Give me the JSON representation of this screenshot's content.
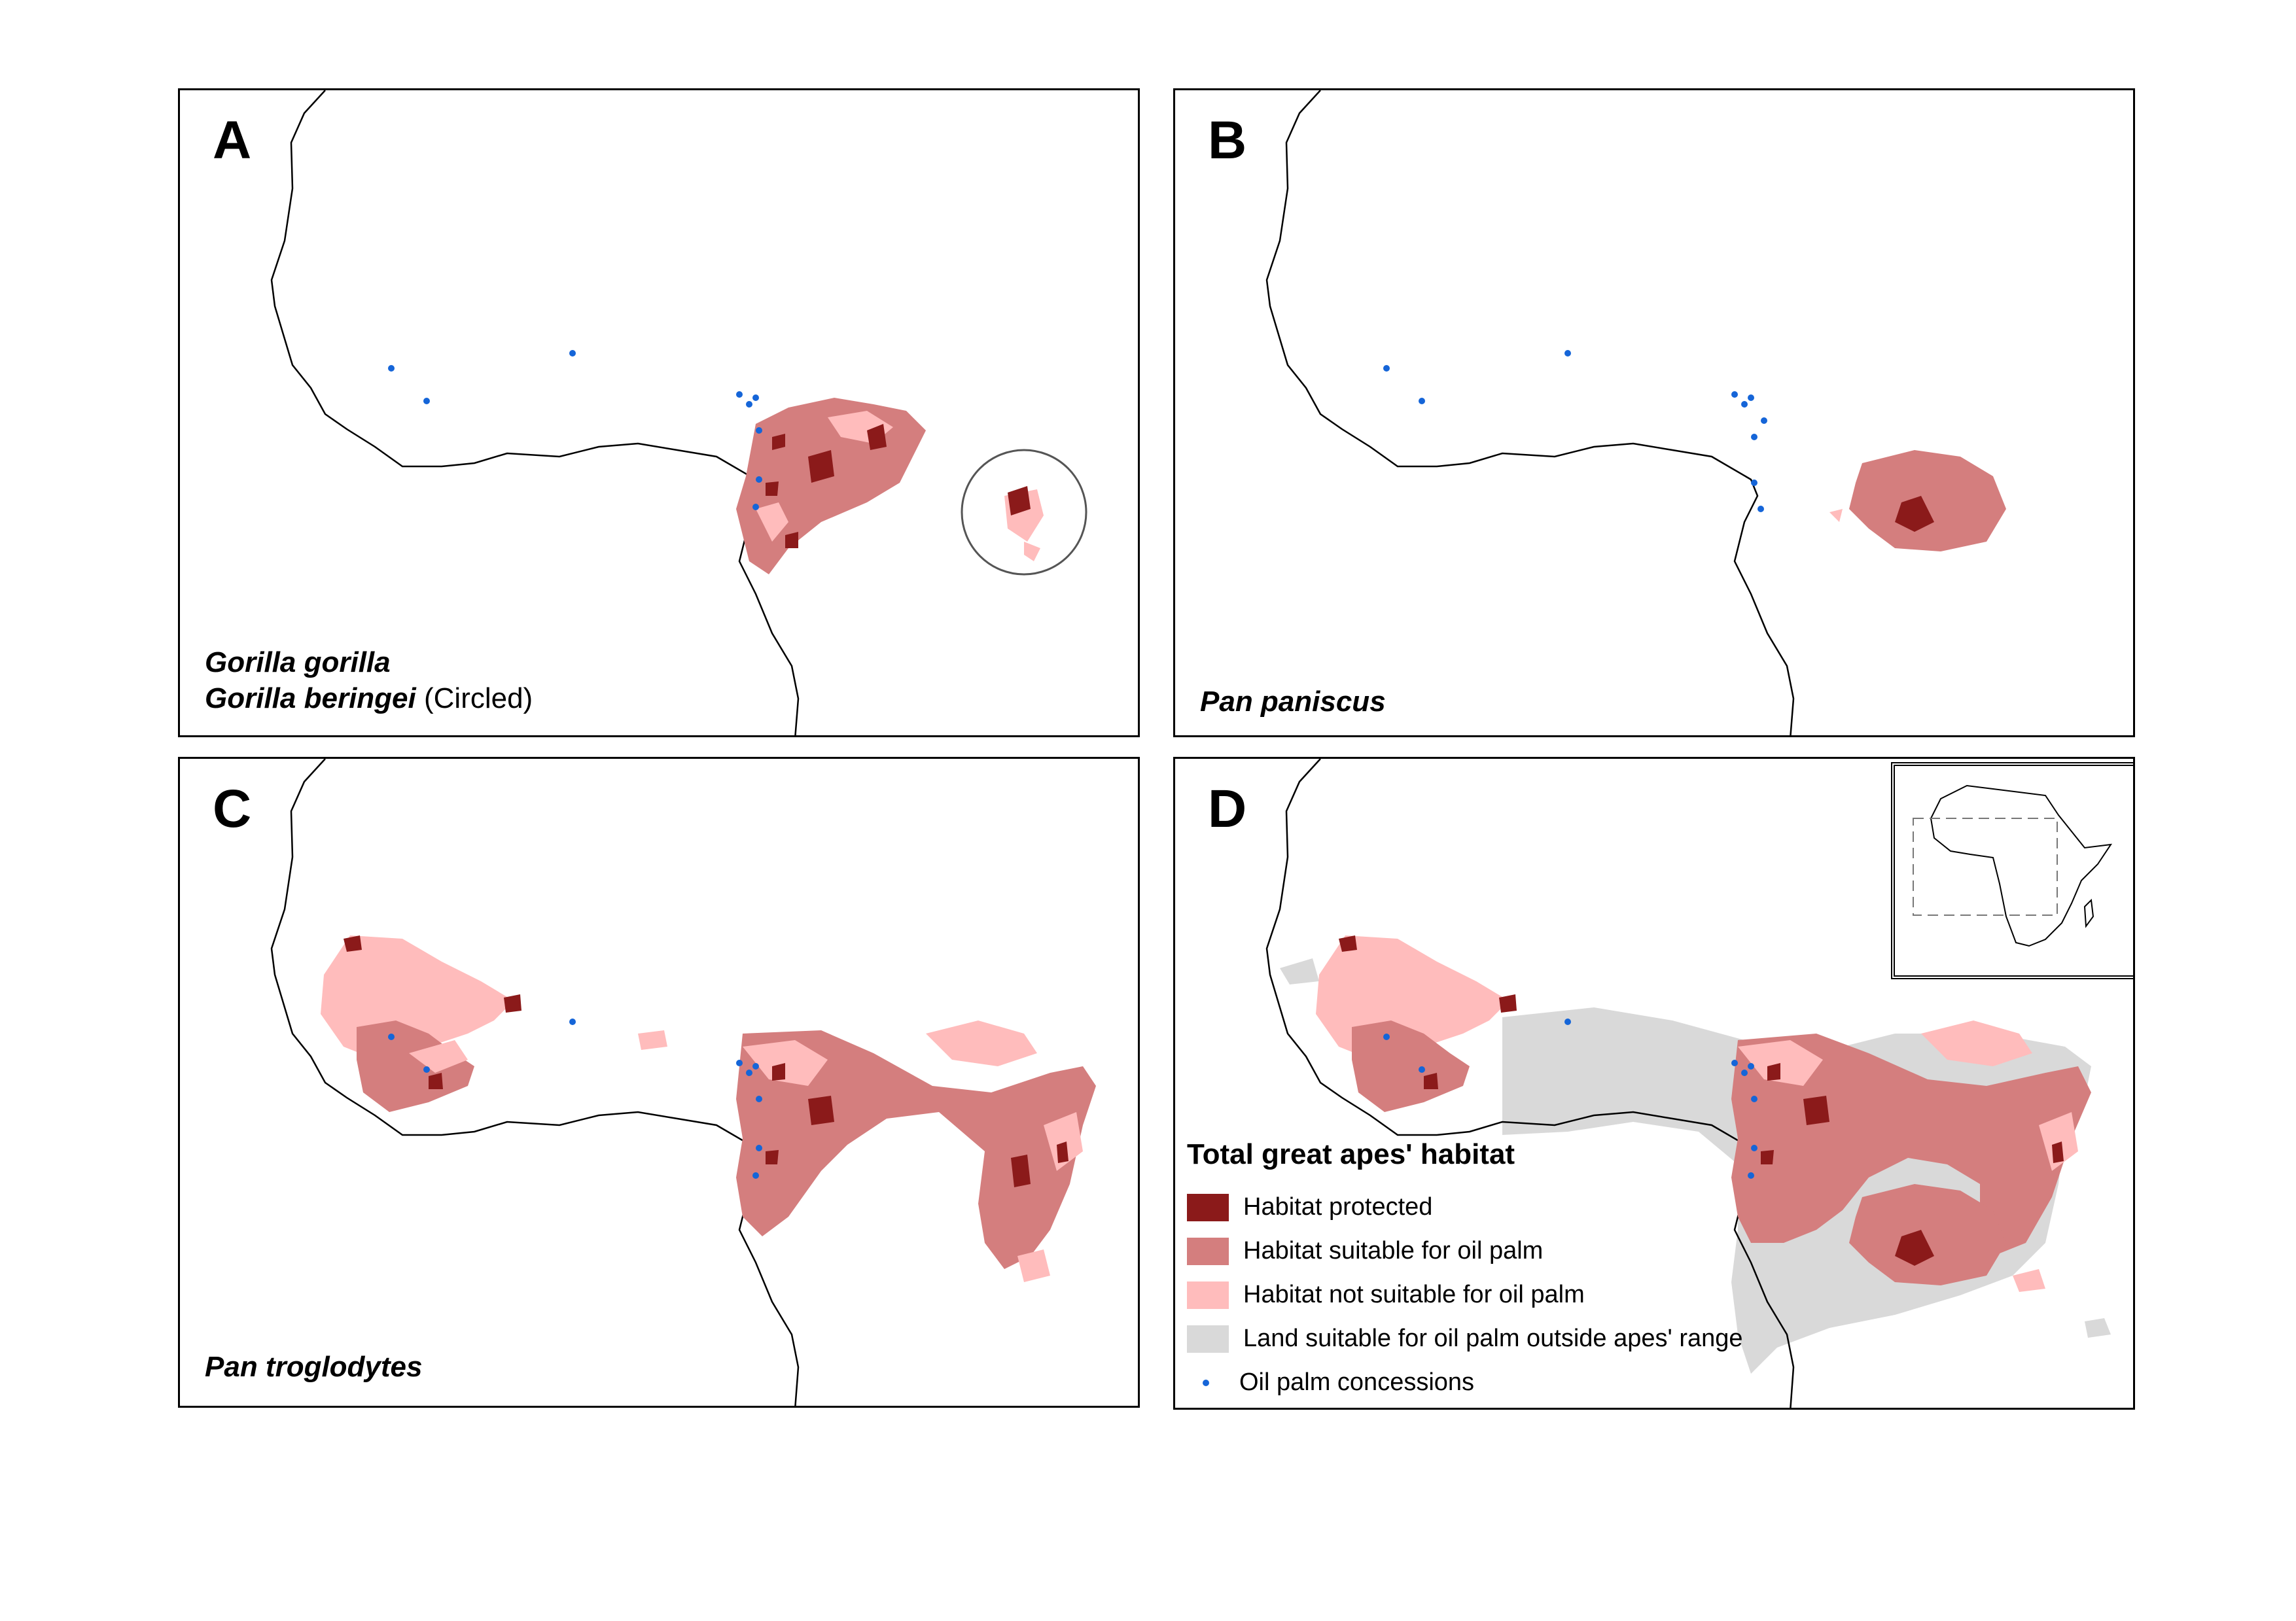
{
  "panels": [
    {
      "letter": "A",
      "species": [
        "Gorilla gorilla",
        "Gorilla beringei"
      ],
      "note": "(Circled)"
    },
    {
      "letter": "B",
      "species": [
        "Pan paniscus"
      ]
    },
    {
      "letter": "C",
      "species": [
        "Pan troglodytes"
      ]
    },
    {
      "letter": "D"
    }
  ],
  "legend": {
    "title": "Total great apes' habitat",
    "items": [
      {
        "label": "Habitat protected",
        "color": "#8b1a1a"
      },
      {
        "label": "Habitat suitable for oil palm",
        "color": "#d47e7e"
      },
      {
        "label": "Habitat  not suitable for oil palm",
        "color": "#ffbcbc"
      },
      {
        "label": "Land suitable for oil palm outside apes' range",
        "color": "#d9d9d9"
      },
      {
        "label": "Oil palm concessions",
        "color": "#1565d8",
        "icon": "dot-icon"
      }
    ]
  },
  "colors": {
    "protected": "#8b1a1a",
    "suitable": "#d47e7e",
    "not_suitable": "#ffbcbc",
    "outside": "#d9d9d9",
    "concession": "#1565d8"
  }
}
